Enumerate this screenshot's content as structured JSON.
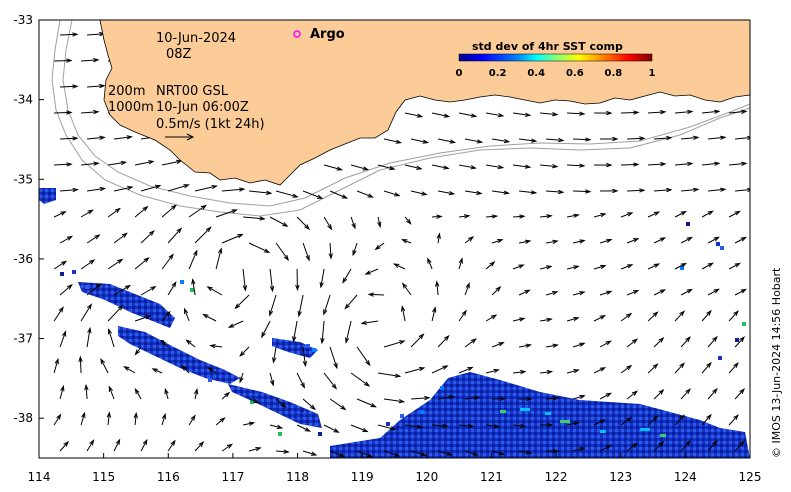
{
  "map": {
    "lon_ticks": [
      "114",
      "115",
      "116",
      "117",
      "118",
      "119",
      "120",
      "121",
      "122",
      "123",
      "124",
      "125"
    ],
    "lat_ticks": [
      "-33",
      "-34",
      "-35",
      "-36",
      "-37",
      "-38"
    ],
    "lon_range": [
      114,
      125
    ],
    "lat_range": [
      -38.5,
      -33
    ],
    "land_color": "#fccc98",
    "depth_contours": "200m and 1000m isobaths (grey)"
  },
  "annotations": {
    "date": "10-Jun-2024",
    "hour": "08Z",
    "depth_200": "200m",
    "product": "NRT00 GSL",
    "depth_1000": "1000m",
    "analysis_time": "10-Jun 06:00Z",
    "scale_label": "0.5m/s (1kt 24h)",
    "argo_label": "Argo",
    "argo_marker_color": "#ff00ff"
  },
  "legend": {
    "title": "std dev of 4hr SST comp",
    "ticks": [
      "0",
      "0.2",
      "0.4",
      "0.6",
      "0.8",
      "1"
    ],
    "colormap": [
      "#00008f",
      "#0000ff",
      "#0080ff",
      "#00ffff",
      "#80ff80",
      "#ffff00",
      "#ff8000",
      "#ff0000",
      "#800000"
    ]
  },
  "credit": "© IMOS 13-Jun-2024 14:56 Hobart",
  "sst_patches": [
    {
      "name": "patch-west-edge",
      "color": "#1a3ad0"
    },
    {
      "name": "patch-band-1",
      "color": "#1a2fb8"
    },
    {
      "name": "patch-band-2",
      "color": "#1a2fb8"
    },
    {
      "name": "patch-band-3",
      "color": "#1a2fb8"
    },
    {
      "name": "patch-south-east",
      "color": "#1430c0"
    }
  ]
}
